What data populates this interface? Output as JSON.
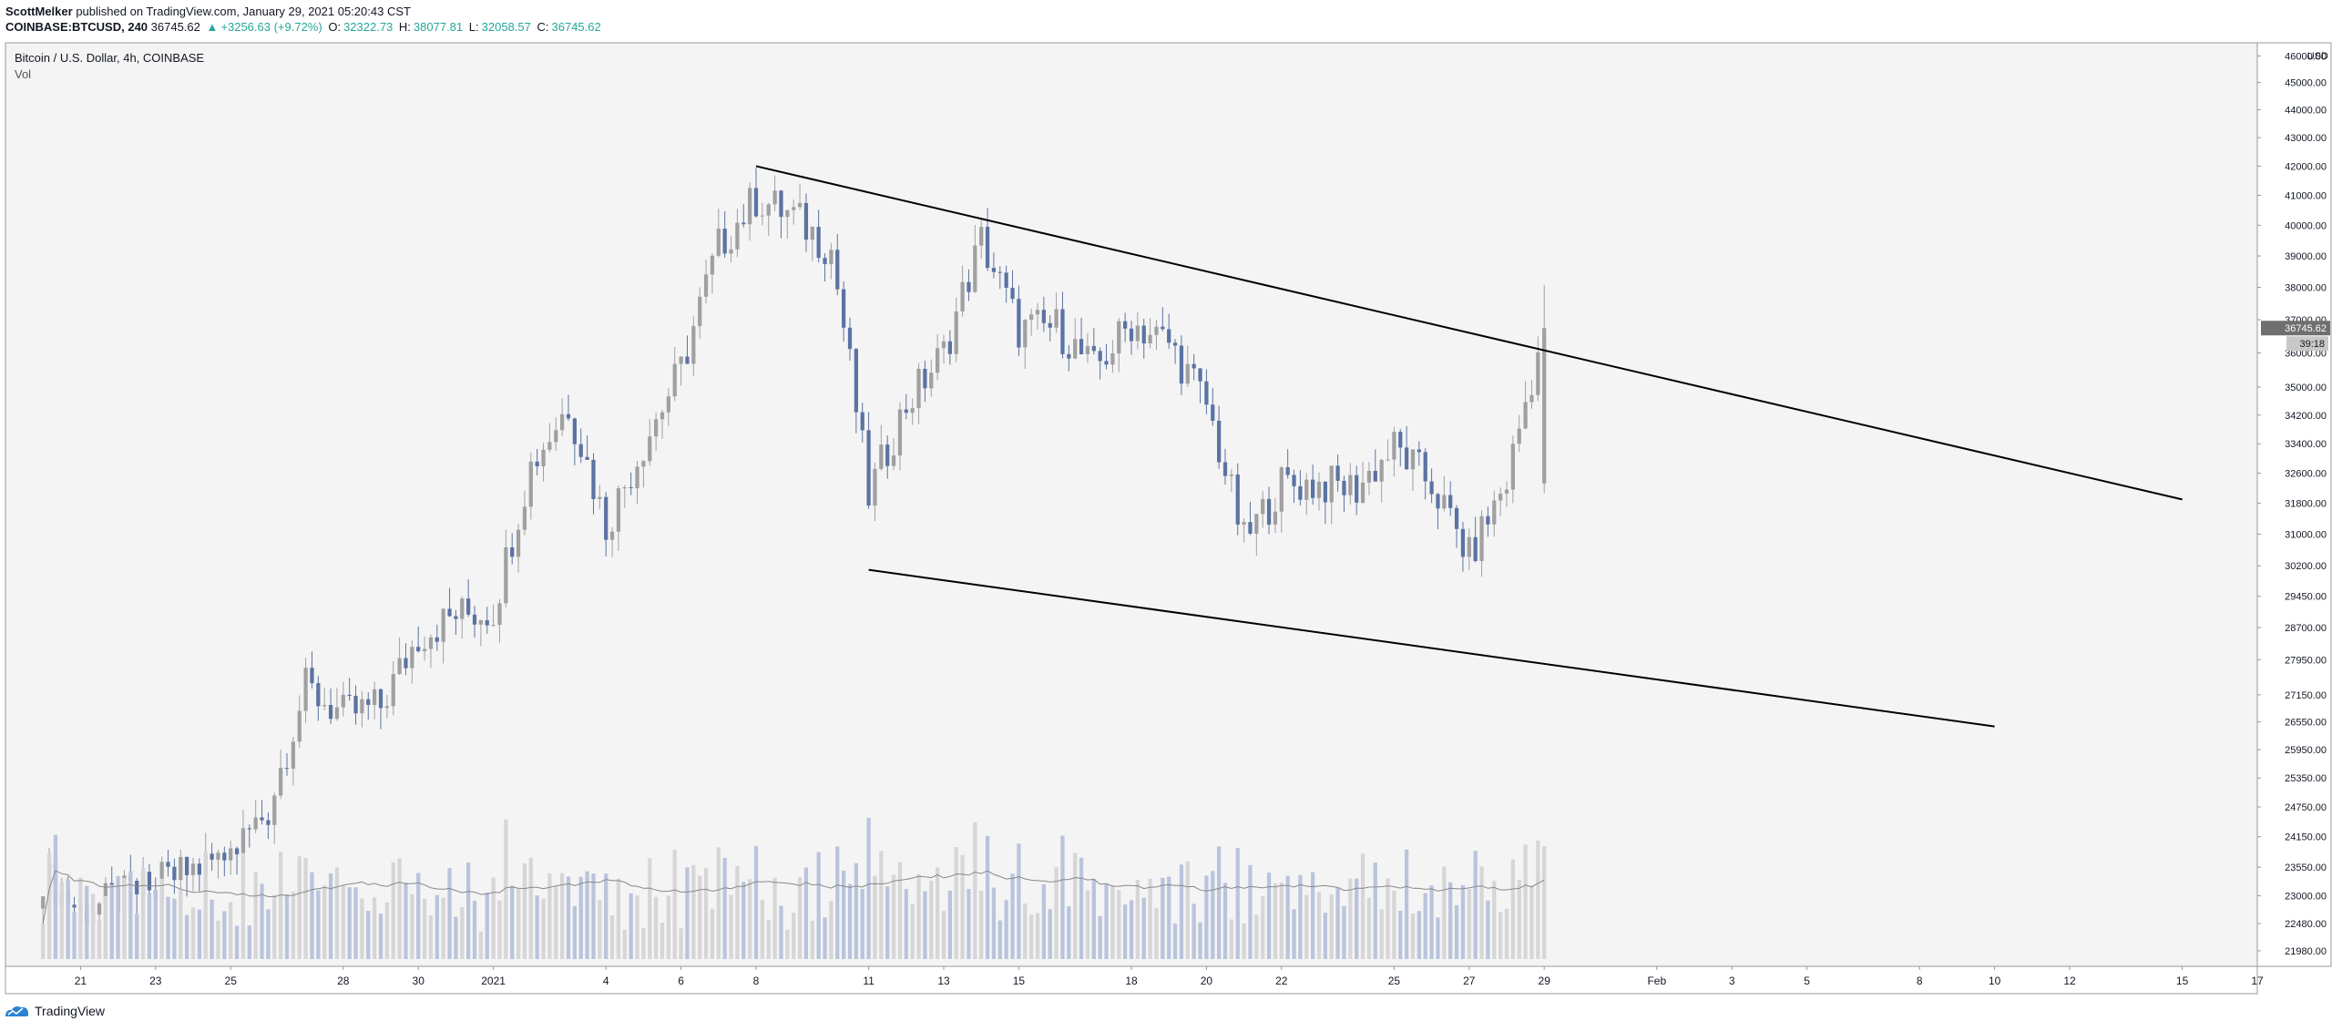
{
  "header": {
    "author": "ScottMelker",
    "published_text": "published on TradingView.com, January 29, 2021 05:20:43 CST",
    "symbol": "COINBASE:BTCUSD, 240",
    "last": "36745.62",
    "change_arrow": "▲",
    "change": "+3256.63 (+9.72%)",
    "o_label": "O:",
    "o_value": "32322.73",
    "h_label": "H:",
    "h_value": "38077.81",
    "l_label": "L:",
    "l_value": "32058.57",
    "c_label": "C:",
    "c_value": "36745.62"
  },
  "legend": {
    "title": "Bitcoin / U.S. Dollar, 4h, COINBASE",
    "volume_label": "Vol"
  },
  "price_axis": {
    "currency": "USD",
    "last_price_tag": "36745.62",
    "countdown_tag": "39:18",
    "ticks": [
      "46000.00",
      "45000.00",
      "44000.00",
      "43000.00",
      "42000.00",
      "41000.00",
      "40000.00",
      "39000.00",
      "38000.00",
      "37000.00",
      "36000.00",
      "35000.00",
      "34200.00",
      "33400.00",
      "32600.00",
      "31800.00",
      "31000.00",
      "30200.00",
      "29450.00",
      "28700.00",
      "27950.00",
      "27150.00",
      "26550.00",
      "25950.00",
      "25350.00",
      "24750.00",
      "24150.00",
      "23550.00",
      "23000.00",
      "22480.00",
      "21980.00"
    ]
  },
  "time_axis": {
    "ticks": [
      "21",
      "23",
      "25",
      "28",
      "30",
      "2021",
      "4",
      "6",
      "8",
      "11",
      "13",
      "15",
      "18",
      "20",
      "22",
      "25",
      "27",
      "29",
      "Feb",
      "3",
      "5",
      "8",
      "10",
      "12",
      "15",
      "17"
    ]
  },
  "branding": {
    "name": "TradingView"
  },
  "colors": {
    "bull": "#a0a0a0",
    "bear": "#5b73a3",
    "trendline": "#000000",
    "background": "#f4f4f4",
    "last_price_tag": "#6f6f6f"
  },
  "chart_data": {
    "type": "candlestick",
    "title": "Bitcoin / U.S. Dollar, 4h, COINBASE",
    "ylabel": "USD",
    "ylim": [
      21700,
      46500
    ],
    "scale": "log",
    "x_range": [
      "Dec 19, 2020",
      "Feb 17, 2021"
    ],
    "key_points": [
      {
        "date": "Dec 20, 2020",
        "price": 23400
      },
      {
        "date": "Dec 21, 2020",
        "price": 22700
      },
      {
        "date": "Dec 23, 2020",
        "price": 23200
      },
      {
        "date": "Dec 25, 2020",
        "price": 23800
      },
      {
        "date": "Dec 26, 2020",
        "price": 24700
      },
      {
        "date": "Dec 27, 2020",
        "price": 27300
      },
      {
        "date": "Dec 28, 2020",
        "price": 26700
      },
      {
        "date": "Dec 29, 2020",
        "price": 26900
      },
      {
        "date": "Dec 30, 2020",
        "price": 28500
      },
      {
        "date": "Dec 31, 2020",
        "price": 29000
      },
      {
        "date": "Jan 1, 2021",
        "price": 29100
      },
      {
        "date": "Jan 2, 2021",
        "price": 32800
      },
      {
        "date": "Jan 3, 2021",
        "price": 34500
      },
      {
        "date": "Jan 4, 2021",
        "price": 31200
      },
      {
        "date": "Jan 5, 2021",
        "price": 33400
      },
      {
        "date": "Jan 6, 2021",
        "price": 35500
      },
      {
        "date": "Jan 7, 2021",
        "price": 39300
      },
      {
        "date": "Jan 8, 2021",
        "price": 40900
      },
      {
        "date": "Jan 9, 2021",
        "price": 40300
      },
      {
        "date": "Jan 10, 2021",
        "price": 39200
      },
      {
        "date": "Jan 11, 2021",
        "price": 32000
      },
      {
        "date": "Jan 12, 2021",
        "price": 34500
      },
      {
        "date": "Jan 13, 2021",
        "price": 36000
      },
      {
        "date": "Jan 14, 2021",
        "price": 39500
      },
      {
        "date": "Jan 15, 2021",
        "price": 36700
      },
      {
        "date": "Jan 16, 2021",
        "price": 36800
      },
      {
        "date": "Jan 17, 2021",
        "price": 35500
      },
      {
        "date": "Jan 18, 2021",
        "price": 36900
      },
      {
        "date": "Jan 19, 2021",
        "price": 36300
      },
      {
        "date": "Jan 20, 2021",
        "price": 34500
      },
      {
        "date": "Jan 21, 2021",
        "price": 30800
      },
      {
        "date": "Jan 22, 2021",
        "price": 32300
      },
      {
        "date": "Jan 23, 2021",
        "price": 32300
      },
      {
        "date": "Jan 24, 2021",
        "price": 32200
      },
      {
        "date": "Jan 25, 2021",
        "price": 33300
      },
      {
        "date": "Jan 26, 2021",
        "price": 32300
      },
      {
        "date": "Jan 27, 2021",
        "price": 30400
      },
      {
        "date": "Jan 28, 2021",
        "price": 32400
      },
      {
        "date": "Jan 29, 2021",
        "price": 36745.62
      }
    ],
    "trendlines": [
      {
        "name": "upper",
        "start": {
          "date": "Jan 8, 2021",
          "price": 42000
        },
        "end": {
          "date": "Feb 15, 2021",
          "price": 31900
        }
      },
      {
        "name": "lower",
        "start": {
          "date": "Jan 11, 2021",
          "price": 30100
        },
        "end": {
          "date": "Feb 10, 2021",
          "price": 26450
        }
      }
    ],
    "last_candle": {
      "open": 32322.73,
      "high": 38077.81,
      "low": 32058.57,
      "close": 36745.62
    }
  }
}
